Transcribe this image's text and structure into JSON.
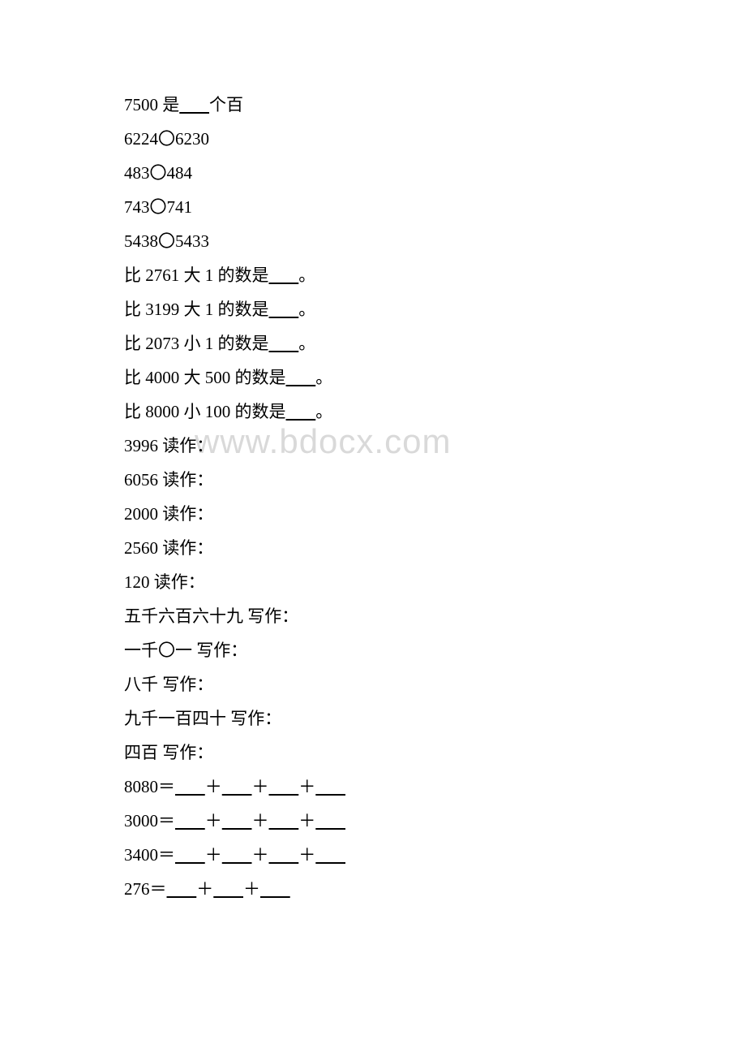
{
  "watermark": "www.bdocx.com",
  "lines": {
    "l1": "7500 是____个百",
    "l2": "6224〇6230",
    "l3": "483〇484",
    "l4": "743〇741",
    "l5": "5438〇5433",
    "l6": "比 2761 大 1 的数是____。",
    "l7": "比 3199 大 1 的数是____。",
    "l8": "比 2073 小 1 的数是____。",
    "l9": "比 4000 大 500 的数是____。",
    "l10": "比 8000 小 100 的数是____。",
    "l11": "3996 读作：",
    "l12": "6056 读作：",
    "l13": "2000 读作：",
    "l14": "2560 读作：",
    "l15": "120 读作：",
    "l16": "五千六百六十九 写作：",
    "l17": "一千〇一 写作：",
    "l18": "八千 写作：",
    "l19": "九千一百四十 写作：",
    "l20": "四百 写作：",
    "l21": "8080＝____＋____＋____＋____",
    "l22": "3000＝____＋____＋____＋____",
    "l23": "3400＝____＋____＋____＋____",
    "l24": "276＝____＋____＋____"
  }
}
